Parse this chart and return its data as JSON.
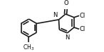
{
  "bg_color": "#ffffff",
  "bond_color": "#1a1a1a",
  "bond_width": 1.2,
  "text_color": "#000000",
  "figsize": [
    1.46,
    0.74
  ],
  "dpi": 100,
  "xlim": [
    0,
    146
  ],
  "ylim": [
    0,
    74
  ]
}
